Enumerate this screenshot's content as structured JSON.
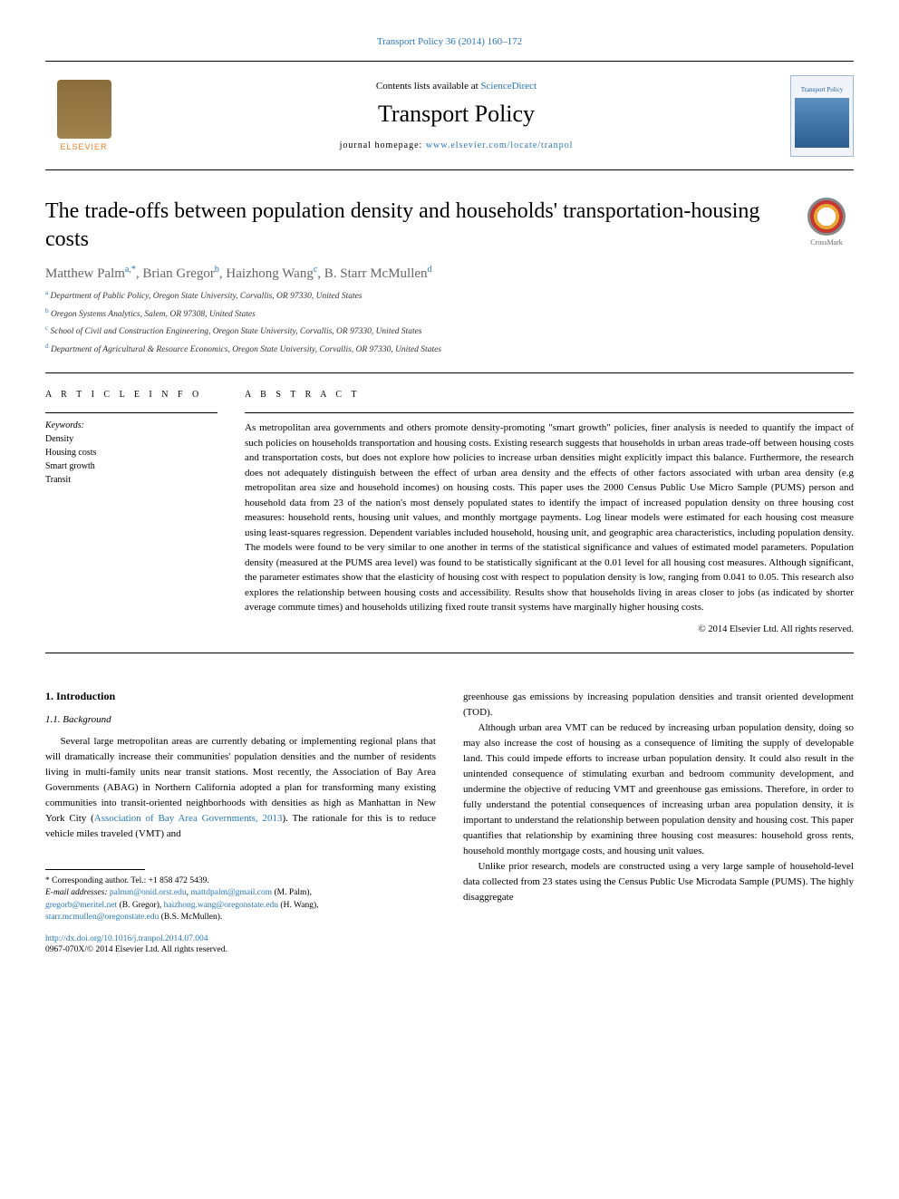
{
  "journal_ref": "Transport Policy 36 (2014) 160–172",
  "header": {
    "contents_prefix": "Contents lists available at ",
    "contents_link": "ScienceDirect",
    "journal_title": "Transport Policy",
    "homepage_prefix": "journal homepage: ",
    "homepage_link": "www.elsevier.com/locate/tranpol",
    "publisher": "ELSEVIER",
    "cover_label": "Transport Policy"
  },
  "crossmark": "CrossMark",
  "title": "The trade-offs between population density and households' transportation-housing costs",
  "authors": [
    {
      "name": "Matthew Palm",
      "marks": "a,*"
    },
    {
      "name": "Brian Gregor",
      "marks": "b"
    },
    {
      "name": "Haizhong Wang",
      "marks": "c"
    },
    {
      "name": "B. Starr McMullen",
      "marks": "d"
    }
  ],
  "affiliations": [
    {
      "mark": "a",
      "text": "Department of Public Policy, Oregon State University, Corvallis, OR 97330, United States"
    },
    {
      "mark": "b",
      "text": "Oregon Systems Analytics, Salem, OR 97308, United States"
    },
    {
      "mark": "c",
      "text": "School of Civil and Construction Engineering, Oregon State University, Corvallis, OR 97330, United States"
    },
    {
      "mark": "d",
      "text": "Department of Agricultural & Resource Economics, Oregon State University, Corvallis, OR 97330, United States"
    }
  ],
  "article_info_head": "A R T I C L E  I N F O",
  "abstract_head": "A B S T R A C T",
  "keywords_label": "Keywords:",
  "keywords": [
    "Density",
    "Housing costs",
    "Smart growth",
    "Transit"
  ],
  "abstract": "As metropolitan area governments and others promote density-promoting \"smart growth\" policies, finer analysis is needed to quantify the impact of such policies on households transportation and housing costs. Existing research suggests that households in urban areas trade-off between housing costs and transportation costs, but does not explore how policies to increase urban densities might explicitly impact this balance. Furthermore, the research does not adequately distinguish between the effect of urban area density and the effects of other factors associated with urban area density (e.g metropolitan area size and household incomes) on housing costs. This paper uses the 2000 Census Public Use Micro Sample (PUMS) person and household data from 23 of the nation's most densely populated states to identify the impact of increased population density on three housing cost measures: household rents, housing unit values, and monthly mortgage payments. Log linear models were estimated for each housing cost measure using least-squares regression. Dependent variables included household, housing unit, and geographic area characteristics, including population density. The models were found to be very similar to one another in terms of the statistical significance and values of estimated model parameters. Population density (measured at the PUMS area level) was found to be statistically significant at the 0.01 level for all housing cost measures. Although significant, the parameter estimates show that the elasticity of housing cost with respect to population density is low, ranging from 0.041 to 0.05. This research also explores the relationship between housing costs and accessibility. Results show that households living in areas closer to jobs (as indicated by shorter average commute times) and households utilizing fixed route transit systems have marginally higher housing costs.",
  "copyright": "© 2014 Elsevier Ltd. All rights reserved.",
  "section1": "1.  Introduction",
  "subsection11": "1.1.  Background",
  "para1_pre": "Several large metropolitan areas are currently debating or implementing regional plans that will dramatically increase their communities' population densities and the number of residents living in multi-family units near transit stations. Most recently, the Association of Bay Area Governments (ABAG) in Northern California adopted a plan for transforming many existing communities into transit-oriented neighborhoods with densities as high as Manhattan in New York City (",
  "para1_link": "Association of Bay Area Governments, 2013",
  "para1_post": "). The rationale for this is to reduce vehicle miles traveled (VMT) and",
  "para2": "greenhouse gas emissions by increasing population densities and transit oriented development (TOD).",
  "para3": "Although urban area VMT can be reduced by increasing urban population density, doing so may also increase the cost of housing as a consequence of limiting the supply of developable land. This could impede efforts to increase urban population density. It could also result in the unintended consequence of stimulating exurban and bedroom community development, and undermine the objective of reducing VMT and greenhouse gas emissions. Therefore, in order to fully understand the potential consequences of increasing urban area population density, it is important to understand the relationship between population density and housing cost. This paper quantifies that relationship by examining three housing cost measures: household gross rents, household monthly mortgage costs, and housing unit values.",
  "para4": "Unlike prior research, models are constructed using a very large sample of household-level data collected from 23 states using the Census Public Use Microdata Sample (PUMS). The highly disaggregate",
  "footnotes": {
    "corresponding": "* Corresponding author. Tel.: +1 858 472 5439.",
    "email_label": "E-mail addresses: ",
    "emails": [
      {
        "addr": "palmm@onid.orst.edu",
        "sep": ", "
      },
      {
        "addr": "mattdpalm@gmail.com",
        "sep": " (M. Palm), "
      },
      {
        "addr": "gregorb@meritel.net",
        "sep": " (B. Gregor), "
      },
      {
        "addr": "haizhong.wang@oregonstate.edu",
        "sep": " (H. Wang), "
      },
      {
        "addr": "starr.mcmullen@oregonstate.edu",
        "sep": " (B.S. McMullen)."
      }
    ]
  },
  "doi": "http://dx.doi.org/10.1016/j.tranpol.2014.07.004",
  "issn": "0967-070X/© 2014 Elsevier Ltd. All rights reserved.",
  "colors": {
    "link": "#2878b8",
    "text": "#000000",
    "author_gray": "#666666",
    "elsevier_orange": "#e67e22"
  },
  "typography": {
    "title_fontsize": 24,
    "journal_title_fontsize": 26,
    "body_fontsize": 11,
    "abstract_fontsize": 11,
    "footnote_fontsize": 9.5,
    "author_fontsize": 15,
    "affiliation_fontsize": 9.5
  }
}
